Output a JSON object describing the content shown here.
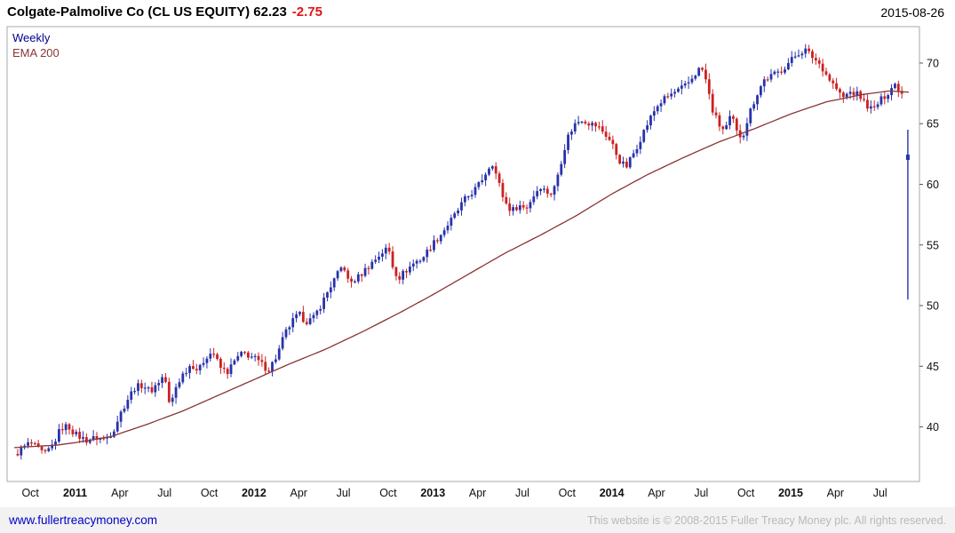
{
  "header": {
    "title": "Colgate-Palmolive Co (CL US EQUITY) 62.23",
    "change": "-2.75",
    "date": "2015-08-26"
  },
  "legend": {
    "series": "Weekly",
    "overlay": "EMA 200"
  },
  "footer": {
    "site": "www.fullertreacymoney.com",
    "copyright": "This website is © 2008-2015 Fuller Treacy Money plc. All rights reserved."
  },
  "colors": {
    "up": "#2832aa",
    "down": "#cc2020",
    "ema": "#8b3434",
    "change": "#e01414",
    "weekly": "#000090",
    "link": "#0000c8",
    "copyright": "#b9b9b9",
    "border": "#aaaaaa",
    "axis_text": "#111111",
    "footer_bg": "#f2f2f2"
  },
  "chart_data": {
    "type": "candlestick",
    "title": "Colgate-Palmolive Co (CL US EQUITY)",
    "frequency": "Weekly",
    "overlay": "EMA 200",
    "last_price": 62.23,
    "change": -2.75,
    "as_of": "2015-08-26",
    "ylim": [
      35.5,
      73.0
    ],
    "yticks": [
      40,
      45,
      50,
      55,
      60,
      65,
      70
    ],
    "xlim": [
      2010.62,
      2015.72
    ],
    "xticks": [
      {
        "t": 2010.75,
        "label": "Oct"
      },
      {
        "t": 2011.0,
        "label": "2011"
      },
      {
        "t": 2011.25,
        "label": "Apr"
      },
      {
        "t": 2011.5,
        "label": "Jul"
      },
      {
        "t": 2011.75,
        "label": "Oct"
      },
      {
        "t": 2012.0,
        "label": "2012"
      },
      {
        "t": 2012.25,
        "label": "Apr"
      },
      {
        "t": 2012.5,
        "label": "Jul"
      },
      {
        "t": 2012.75,
        "label": "Oct"
      },
      {
        "t": 2013.0,
        "label": "2013"
      },
      {
        "t": 2013.25,
        "label": "Apr"
      },
      {
        "t": 2013.5,
        "label": "Jul"
      },
      {
        "t": 2013.75,
        "label": "Oct"
      },
      {
        "t": 2014.0,
        "label": "2014"
      },
      {
        "t": 2014.25,
        "label": "Apr"
      },
      {
        "t": 2014.5,
        "label": "Jul"
      },
      {
        "t": 2014.75,
        "label": "Oct"
      },
      {
        "t": 2015.0,
        "label": "2015"
      },
      {
        "t": 2015.25,
        "label": "Apr"
      },
      {
        "t": 2015.5,
        "label": "Jul"
      }
    ],
    "close_anchors": [
      [
        2010.66,
        37.6
      ],
      [
        2010.71,
        38.3
      ],
      [
        2010.75,
        38.7
      ],
      [
        2010.79,
        38.2
      ],
      [
        2010.83,
        37.7
      ],
      [
        2010.88,
        38.6
      ],
      [
        2010.92,
        39.9
      ],
      [
        2010.96,
        40.1
      ],
      [
        2011.0,
        39.4
      ],
      [
        2011.06,
        38.9
      ],
      [
        2011.12,
        39.1
      ],
      [
        2011.17,
        39.0
      ],
      [
        2011.21,
        39.6
      ],
      [
        2011.25,
        41.0
      ],
      [
        2011.29,
        42.2
      ],
      [
        2011.33,
        43.2
      ],
      [
        2011.38,
        43.5
      ],
      [
        2011.42,
        42.9
      ],
      [
        2011.46,
        43.6
      ],
      [
        2011.5,
        44.3
      ],
      [
        2011.53,
        41.5
      ],
      [
        2011.56,
        43.2
      ],
      [
        2011.6,
        44.3
      ],
      [
        2011.65,
        45.2
      ],
      [
        2011.69,
        44.6
      ],
      [
        2011.73,
        45.8
      ],
      [
        2011.77,
        46.2
      ],
      [
        2011.81,
        44.9
      ],
      [
        2011.85,
        44.5
      ],
      [
        2011.9,
        45.6
      ],
      [
        2011.94,
        46.1
      ],
      [
        2012.0,
        45.7
      ],
      [
        2012.04,
        45.2
      ],
      [
        2012.08,
        44.7
      ],
      [
        2012.13,
        45.9
      ],
      [
        2012.17,
        47.6
      ],
      [
        2012.21,
        48.6
      ],
      [
        2012.25,
        49.3
      ],
      [
        2012.29,
        48.7
      ],
      [
        2012.33,
        48.9
      ],
      [
        2012.38,
        50.2
      ],
      [
        2012.42,
        51.4
      ],
      [
        2012.46,
        52.4
      ],
      [
        2012.5,
        53.4
      ],
      [
        2012.53,
        51.8
      ],
      [
        2012.58,
        52.3
      ],
      [
        2012.63,
        53.1
      ],
      [
        2012.67,
        53.7
      ],
      [
        2012.71,
        54.3
      ],
      [
        2012.75,
        54.8
      ],
      [
        2012.78,
        53.0
      ],
      [
        2012.81,
        52.3
      ],
      [
        2012.85,
        52.9
      ],
      [
        2012.9,
        53.6
      ],
      [
        2012.94,
        53.9
      ],
      [
        2013.0,
        55.1
      ],
      [
        2013.04,
        55.8
      ],
      [
        2013.08,
        56.6
      ],
      [
        2013.13,
        57.6
      ],
      [
        2013.17,
        58.6
      ],
      [
        2013.21,
        59.2
      ],
      [
        2013.25,
        59.8
      ],
      [
        2013.29,
        60.8
      ],
      [
        2013.33,
        61.9
      ],
      [
        2013.36,
        60.5
      ],
      [
        2013.4,
        58.6
      ],
      [
        2013.44,
        57.8
      ],
      [
        2013.48,
        58.3
      ],
      [
        2013.52,
        58.0
      ],
      [
        2013.56,
        59.0
      ],
      [
        2013.6,
        59.9
      ],
      [
        2013.63,
        59.4
      ],
      [
        2013.67,
        59.2
      ],
      [
        2013.71,
        61.5
      ],
      [
        2013.75,
        63.8
      ],
      [
        2013.79,
        64.9
      ],
      [
        2013.83,
        65.4
      ],
      [
        2013.88,
        65.0
      ],
      [
        2013.92,
        64.8
      ],
      [
        2013.96,
        64.2
      ],
      [
        2014.0,
        63.4
      ],
      [
        2014.04,
        62.0
      ],
      [
        2014.08,
        61.4
      ],
      [
        2014.13,
        62.8
      ],
      [
        2014.17,
        64.1
      ],
      [
        2014.21,
        65.3
      ],
      [
        2014.25,
        66.4
      ],
      [
        2014.29,
        67.0
      ],
      [
        2014.33,
        67.4
      ],
      [
        2014.38,
        67.8
      ],
      [
        2014.42,
        68.2
      ],
      [
        2014.46,
        69.0
      ],
      [
        2014.5,
        69.7
      ],
      [
        2014.53,
        68.4
      ],
      [
        2014.56,
        66.2
      ],
      [
        2014.6,
        64.9
      ],
      [
        2014.63,
        64.4
      ],
      [
        2014.67,
        65.7
      ],
      [
        2014.7,
        64.2
      ],
      [
        2014.73,
        63.9
      ],
      [
        2014.77,
        65.9
      ],
      [
        2014.81,
        67.4
      ],
      [
        2014.85,
        68.6
      ],
      [
        2014.9,
        69.0
      ],
      [
        2014.94,
        69.3
      ],
      [
        2015.0,
        70.2
      ],
      [
        2015.04,
        70.8
      ],
      [
        2015.08,
        71.1
      ],
      [
        2015.13,
        70.4
      ],
      [
        2015.17,
        69.8
      ],
      [
        2015.21,
        68.8
      ],
      [
        2015.25,
        68.0
      ],
      [
        2015.29,
        67.1
      ],
      [
        2015.33,
        67.6
      ],
      [
        2015.38,
        67.4
      ],
      [
        2015.42,
        66.6
      ],
      [
        2015.46,
        66.1
      ],
      [
        2015.5,
        66.9
      ],
      [
        2015.54,
        67.5
      ],
      [
        2015.58,
        68.3
      ],
      [
        2015.61,
        67.8
      ],
      [
        2015.63,
        67.3
      ]
    ],
    "ema_anchors": [
      [
        2010.66,
        38.3
      ],
      [
        2010.9,
        38.5
      ],
      [
        2011.0,
        38.7
      ],
      [
        2011.2,
        39.2
      ],
      [
        2011.4,
        40.2
      ],
      [
        2011.6,
        41.3
      ],
      [
        2011.8,
        42.6
      ],
      [
        2012.0,
        43.9
      ],
      [
        2012.2,
        45.2
      ],
      [
        2012.4,
        46.4
      ],
      [
        2012.6,
        47.8
      ],
      [
        2012.8,
        49.3
      ],
      [
        2013.0,
        50.9
      ],
      [
        2013.2,
        52.6
      ],
      [
        2013.4,
        54.3
      ],
      [
        2013.6,
        55.8
      ],
      [
        2013.8,
        57.4
      ],
      [
        2014.0,
        59.2
      ],
      [
        2014.2,
        60.8
      ],
      [
        2014.4,
        62.2
      ],
      [
        2014.6,
        63.5
      ],
      [
        2014.8,
        64.6
      ],
      [
        2015.0,
        65.8
      ],
      [
        2015.2,
        66.8
      ],
      [
        2015.4,
        67.4
      ],
      [
        2015.55,
        67.7
      ],
      [
        2015.66,
        67.6
      ]
    ],
    "last_candle": {
      "t": 2015.655,
      "open": 62.0,
      "high": 64.5,
      "low": 50.5,
      "close": 62.23
    }
  }
}
